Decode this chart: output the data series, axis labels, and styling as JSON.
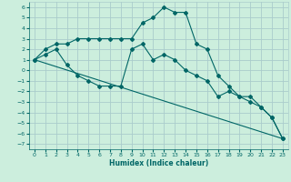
{
  "xlabel": "Humidex (Indice chaleur)",
  "bg_color": "#cceedd",
  "line_color": "#006666",
  "grid_color": "#aacccc",
  "xlim": [
    -0.5,
    23.5
  ],
  "ylim": [
    -7.5,
    6.5
  ],
  "xticks": [
    0,
    1,
    2,
    3,
    4,
    5,
    6,
    7,
    8,
    9,
    10,
    11,
    12,
    13,
    14,
    15,
    16,
    17,
    18,
    19,
    20,
    21,
    22,
    23
  ],
  "yticks": [
    -7,
    -6,
    -5,
    -4,
    -3,
    -2,
    -1,
    0,
    1,
    2,
    3,
    4,
    5,
    6
  ],
  "lines": [
    {
      "x": [
        0,
        1,
        2,
        3,
        4,
        5,
        6,
        7,
        8,
        9,
        10,
        11,
        12,
        13,
        14,
        15,
        16,
        17,
        18,
        19,
        20,
        21,
        22,
        23
      ],
      "y": [
        1,
        2,
        2.5,
        2.5,
        3,
        3,
        3,
        3,
        3,
        3,
        4.5,
        5,
        6,
        5.5,
        5.5,
        2.5,
        2,
        -0.5,
        -1.5,
        -2.5,
        -2.5,
        -3.5,
        -4.5,
        -6.5
      ]
    },
    {
      "x": [
        0,
        1,
        2,
        3,
        4,
        5,
        6,
        7,
        8,
        9,
        10,
        11,
        12,
        13,
        14,
        15,
        16,
        17,
        18,
        19,
        20,
        21,
        22,
        23
      ],
      "y": [
        1,
        1.5,
        2,
        0.5,
        -0.5,
        -1,
        -1.5,
        -1.5,
        -1.5,
        2,
        2.5,
        1,
        1.5,
        1,
        0,
        -0.5,
        -1,
        -2.5,
        -2,
        -2.5,
        -3,
        -3.5,
        -4.5,
        -6.5
      ]
    },
    {
      "x": [
        0,
        23
      ],
      "y": [
        1,
        -6.5
      ]
    }
  ]
}
